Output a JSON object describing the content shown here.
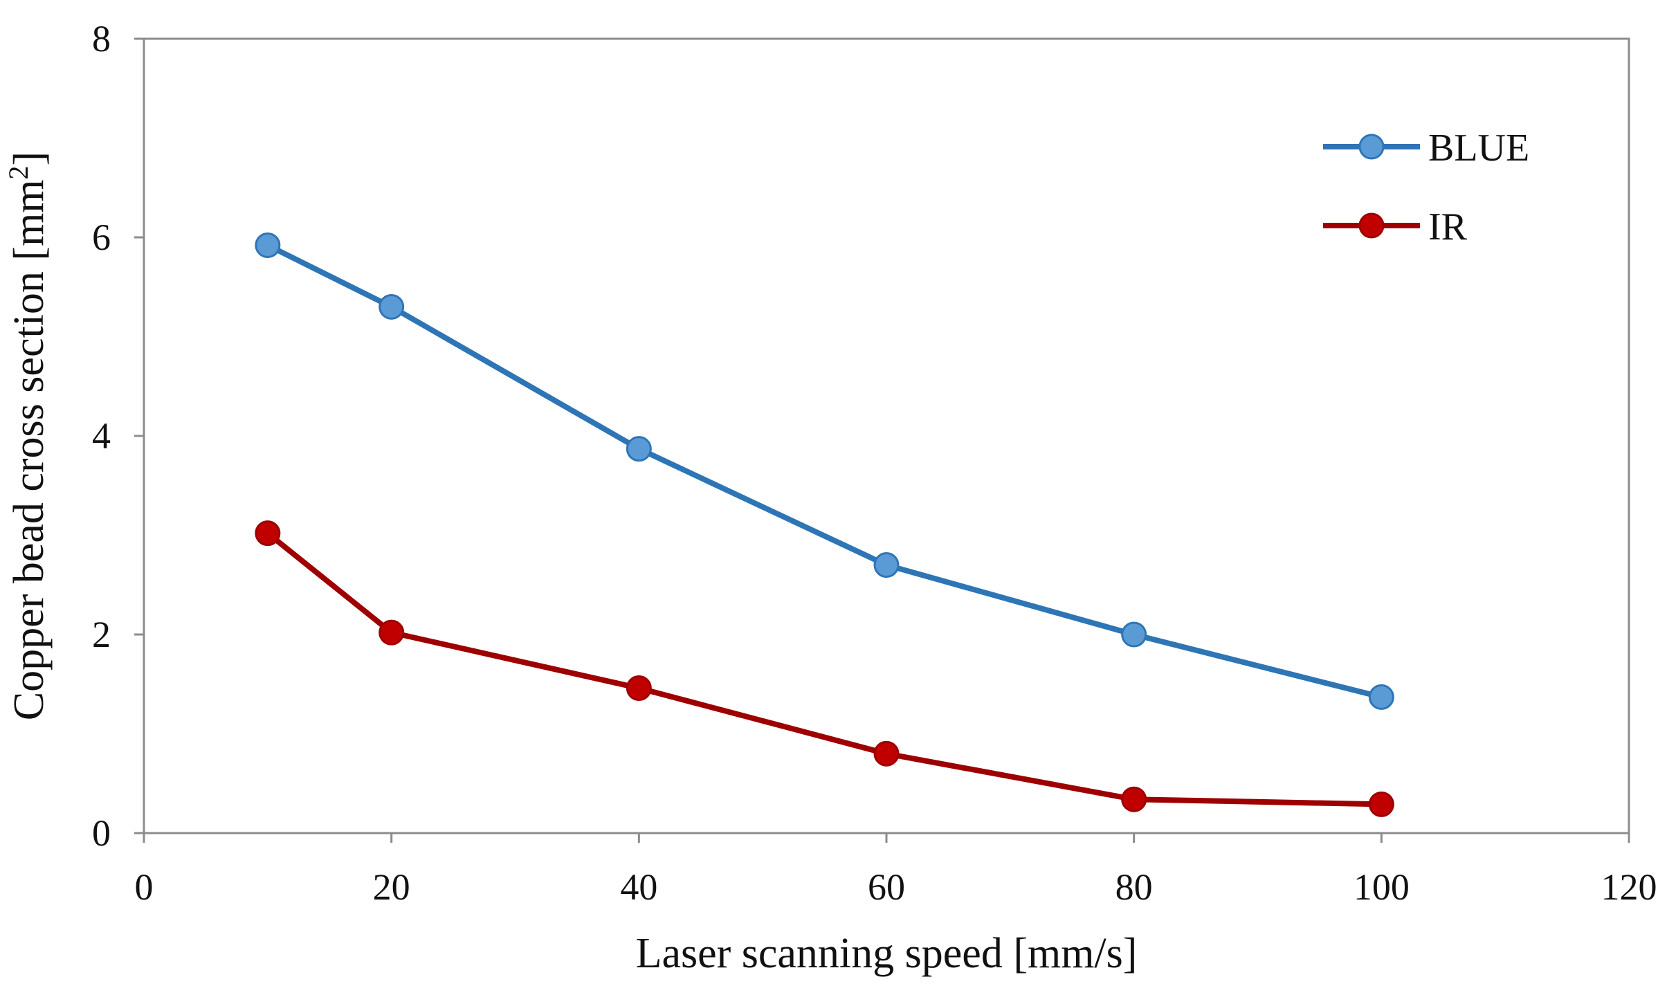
{
  "chart_data": {
    "type": "line",
    "title": "",
    "xlabel": "Laser scanning speed [mm/s]",
    "ylabel_main": "Copper bead cross section [mm",
    "ylabel_sup": "2",
    "ylabel_end": "]",
    "xlim": [
      0,
      120
    ],
    "ylim": [
      0,
      8
    ],
    "xticks": [
      0,
      20,
      40,
      60,
      80,
      100,
      120
    ],
    "yticks": [
      0,
      2,
      4,
      6,
      8
    ],
    "xtick_labels": [
      "0",
      "20",
      "40",
      "60",
      "80",
      "100",
      "120"
    ],
    "ytick_labels": [
      "0",
      "2",
      "4",
      "6",
      "8"
    ],
    "grid": false,
    "legend_position": "top-right",
    "x": [
      10,
      20,
      40,
      60,
      80,
      100
    ],
    "series": [
      {
        "name": "BLUE",
        "color": "#2E75B6",
        "marker_color": "#5B9BD5",
        "values": [
          5.92,
          5.3,
          3.87,
          2.7,
          2.0,
          1.37
        ]
      },
      {
        "name": "IR",
        "color": "#9E0000",
        "marker_color": "#C00000",
        "values": [
          3.02,
          2.02,
          1.46,
          0.8,
          0.34,
          0.29
        ]
      }
    ]
  }
}
